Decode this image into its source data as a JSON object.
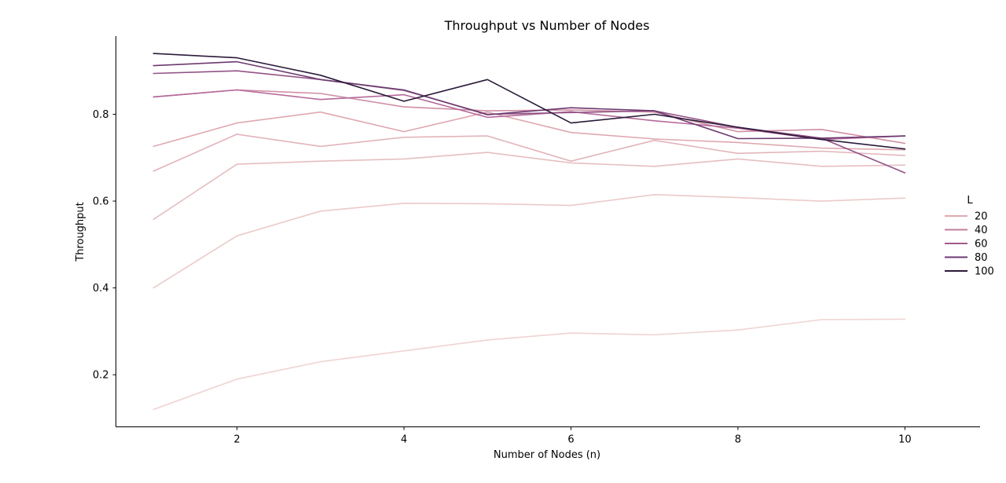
{
  "chart_data": {
    "type": "line",
    "title": "Throughput vs Number of Nodes",
    "xlabel": "Number of Nodes (n)",
    "ylabel": "Throughput",
    "x": [
      1,
      2,
      3,
      4,
      5,
      6,
      7,
      8,
      9,
      10
    ],
    "xlim": [
      0.55,
      10.9
    ],
    "ylim": [
      0.08,
      0.98
    ],
    "xticks": [
      2,
      4,
      6,
      8,
      10
    ],
    "yticks": [
      0.2,
      0.4,
      0.6,
      0.8
    ],
    "ytick_labels": [
      "0.2",
      "0.4",
      "0.6",
      "0.8"
    ],
    "grid": false,
    "legend": {
      "title": "L",
      "placement": "right",
      "entries": [
        {
          "label": "20",
          "color": "#dfa8b0"
        },
        {
          "label": "40",
          "color": "#c47d9c"
        },
        {
          "label": "60",
          "color": "#a25a8a"
        },
        {
          "label": "80",
          "color": "#6e3a74"
        },
        {
          "label": "100",
          "color": "#2b1a3a"
        }
      ]
    },
    "series": [
      {
        "color": "#efd4d2",
        "values": [
          0.12,
          0.19,
          0.23,
          0.255,
          0.28,
          0.296,
          0.292,
          0.303,
          0.327,
          0.328
        ]
      },
      {
        "color": "#ebcac8",
        "values": [
          0.4,
          0.52,
          0.577,
          0.595,
          0.594,
          0.59,
          0.615,
          0.608,
          0.6,
          0.607
        ]
      },
      {
        "color": "#e6bfc0",
        "values": [
          0.558,
          0.685,
          0.692,
          0.697,
          0.712,
          0.688,
          0.68,
          0.697,
          0.68,
          0.683
        ]
      },
      {
        "color": "#e2b4ba",
        "values": [
          0.669,
          0.754,
          0.726,
          0.747,
          0.75,
          0.692,
          0.74,
          0.71,
          0.715,
          0.705
        ]
      },
      {
        "color": "#dfa8b0",
        "values": [
          0.726,
          0.78,
          0.805,
          0.76,
          0.805,
          0.758,
          0.743,
          0.735,
          0.722,
          0.718
        ]
      },
      {
        "color": "#cf8fa4",
        "values": [
          0.84,
          0.856,
          0.848,
          0.817,
          0.808,
          0.81,
          0.805,
          0.76,
          0.765,
          0.733
        ]
      },
      {
        "color": "#b5699a",
        "values": [
          0.84,
          0.856,
          0.834,
          0.845,
          0.793,
          0.806,
          0.785,
          0.768,
          0.742,
          0.75
        ]
      },
      {
        "color": "#935386",
        "values": [
          0.894,
          0.9,
          0.88,
          0.855,
          0.8,
          0.804,
          0.808,
          0.77,
          0.745,
          0.665
        ]
      },
      {
        "color": "#6b3a70",
        "values": [
          0.912,
          0.921,
          0.88,
          0.856,
          0.799,
          0.815,
          0.808,
          0.744,
          0.745,
          0.75
        ]
      },
      {
        "color": "#2b1a3a",
        "values": [
          0.94,
          0.93,
          0.89,
          0.83,
          0.88,
          0.78,
          0.8,
          0.77,
          0.742,
          0.72
        ]
      }
    ]
  }
}
